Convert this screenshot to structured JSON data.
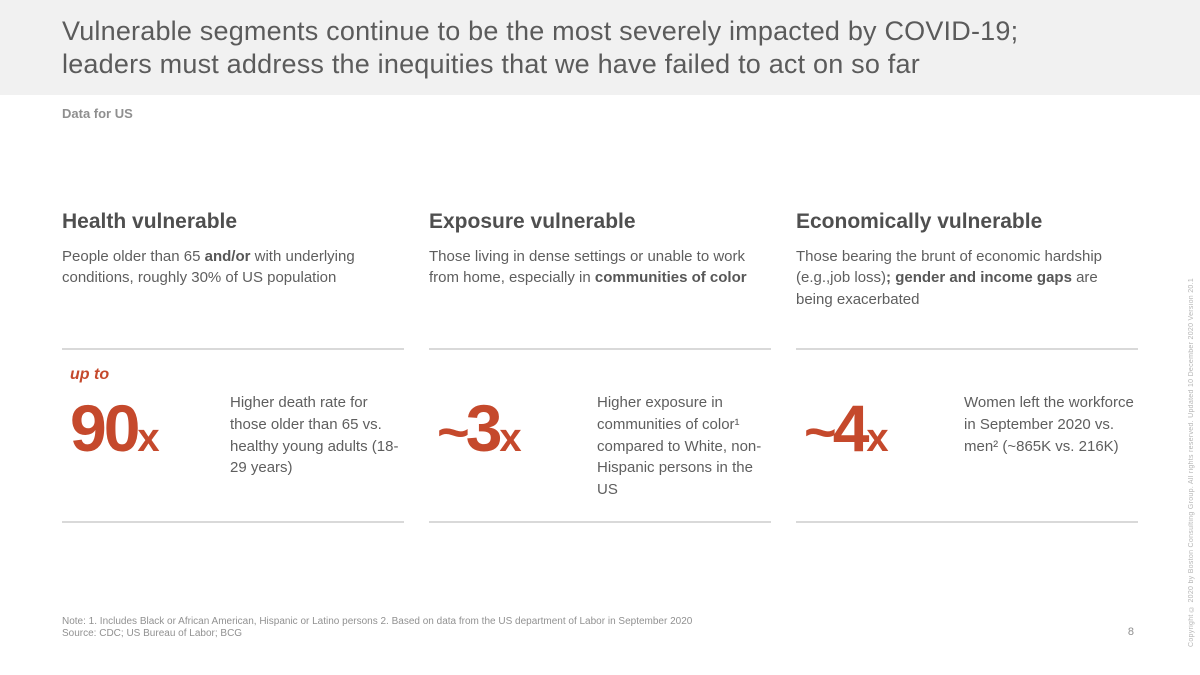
{
  "slide": {
    "title_line1": "Vulnerable segments continue to be the most severely impacted by COVID-19;",
    "title_line2": "leaders must address the inequities that we have failed to act on so far",
    "tag": "Data for US",
    "note": "Note: 1. Includes Black or African American, Hispanic or Latino persons  2. Based on data from the US department of Labor in September 2020",
    "source": "Source: CDC; US Bureau of Labor; BCG",
    "page_number": "8",
    "copyright": "Copyright © 2020 by Boston Consulting Group. All rights reserved. Updated 10 December 2020 Version 20.1"
  },
  "colors": {
    "accent_red": "#C5492C",
    "header_bg": "#F1F1F1",
    "heading_text": "#4F4F4F",
    "body_text": "#5E5E5E",
    "muted_text": "#8F8F8F",
    "divider": "#D9D9D9"
  },
  "columns": [
    {
      "heading": "Health vulnerable",
      "body_pre": "People older than 65 ",
      "body_bold": "and/or",
      "body_post": " with underlying conditions, roughly 30% of US population",
      "stat_prefix": "up to",
      "stat_tilde": "",
      "stat_value": "90",
      "stat_unit": "x",
      "stat_desc": "Higher death rate for those older than 65 vs. healthy young adults (18-29 years)"
    },
    {
      "heading": "Exposure vulnerable",
      "body_pre": "Those living in dense settings or unable to work from home, especially in ",
      "body_bold": "communities of color",
      "body_post": "",
      "stat_prefix": "",
      "stat_tilde": "~",
      "stat_value": "3",
      "stat_unit": "x",
      "stat_desc": "Higher exposure in communities of color¹ compared to White, non-Hispanic persons in the US"
    },
    {
      "heading": "Economically vulnerable",
      "body_pre": "Those bearing the brunt of economic hardship (e.g.,job loss)",
      "body_bold": "; gender and income gaps",
      "body_post": " are being exacerbated",
      "stat_prefix": "",
      "stat_tilde": "~",
      "stat_value": "4",
      "stat_unit": "x",
      "stat_desc": "Women left the workforce in September 2020 vs. men² (~865K vs. 216K)"
    }
  ]
}
